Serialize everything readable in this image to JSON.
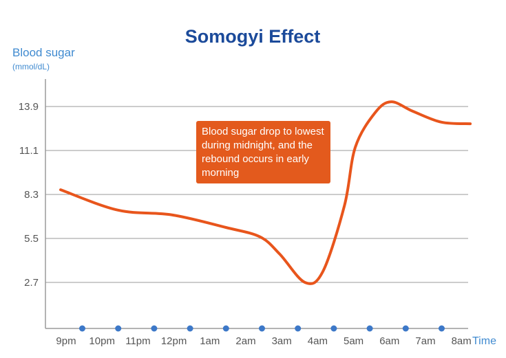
{
  "chart_data": {
    "type": "line",
    "title": "Somogyi Effect",
    "ylabel": "Blood sugar",
    "yunit": "(mmol/dL)",
    "xlabel": "Time",
    "x_ticks": [
      "9pm",
      "10pm",
      "11pm",
      "12pm",
      "1am",
      "2am",
      "3am",
      "4am",
      "5am",
      "6am",
      "7am",
      "8am"
    ],
    "y_ticks": [
      2.7,
      5.5,
      8.3,
      11.1,
      13.9
    ],
    "ylim": [
      -0.3,
      15.6
    ],
    "grid": "horizontal",
    "series": [
      {
        "color": "#e8551c",
        "points": [
          {
            "x": "21:00",
            "y": 8.6
          },
          {
            "x": "22:36",
            "y": 7.3
          },
          {
            "x": "00:06",
            "y": 7.0
          },
          {
            "x": "01:36",
            "y": 6.2
          },
          {
            "x": "02:33",
            "y": 5.6
          },
          {
            "x": "03:06",
            "y": 4.5
          },
          {
            "x": "03:48",
            "y": 2.7
          },
          {
            "x": "04:18",
            "y": 3.4
          },
          {
            "x": "04:54",
            "y": 7.6
          },
          {
            "x": "05:12",
            "y": 11.3
          },
          {
            "x": "05:45",
            "y": 13.5
          },
          {
            "x": "06:12",
            "y": 14.2
          },
          {
            "x": "06:48",
            "y": 13.6
          },
          {
            "x": "07:36",
            "y": 12.9
          },
          {
            "x": "08:24",
            "y": 12.8
          }
        ]
      }
    ],
    "marker_color": "#3c78c8",
    "annotation": "Blood sugar drop to lowest during midnight, and the rebound occurs in early morning"
  }
}
